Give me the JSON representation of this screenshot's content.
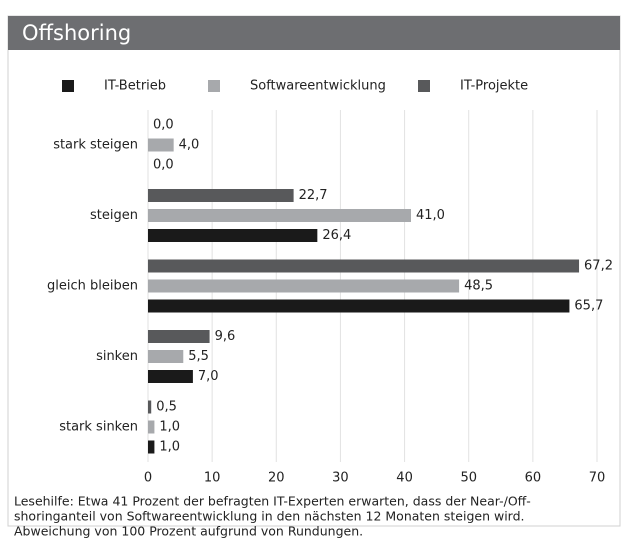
{
  "chart_data": {
    "type": "hbar",
    "title": "Offshoring",
    "categories": [
      "stark steigen",
      "steigen",
      "gleich bleiben",
      "sinken",
      "stark sinken"
    ],
    "series": [
      {
        "name": "IT-Betrieb",
        "color": "#1a1a1a",
        "values": [
          0.0,
          26.4,
          65.7,
          7.0,
          1.0
        ],
        "value_labels": [
          "0,0",
          "26,4",
          "65,7",
          "7,0",
          "1,0"
        ]
      },
      {
        "name": "Softwareentwicklung",
        "color": "#a7a9ac",
        "values": [
          4.0,
          41.0,
          48.5,
          5.5,
          1.0
        ],
        "value_labels": [
          "4,0",
          "41,0",
          "48,5",
          "5,5",
          "1,0"
        ]
      },
      {
        "name": "IT-Projekte",
        "color": "#58595b",
        "values": [
          0.0,
          22.7,
          67.2,
          9.6,
          0.5
        ],
        "value_labels": [
          "0,0",
          "22,7",
          "67,2",
          "9,6",
          "0,5"
        ]
      }
    ],
    "xlim": [
      0,
      70
    ],
    "xticks": [
      0,
      10,
      20,
      30,
      40,
      50,
      60,
      70
    ],
    "grid": true,
    "note": [
      "Lesehilfe: Etwa 41 Prozent der befragten IT-Experten erwarten, dass der Near-/Off-",
      "shoringanteil von Softwareentwicklung in den nächsten 12 Monaten steigen wird.",
      "Abweichung von 100 Prozent aufgrund von Rundungen."
    ]
  }
}
